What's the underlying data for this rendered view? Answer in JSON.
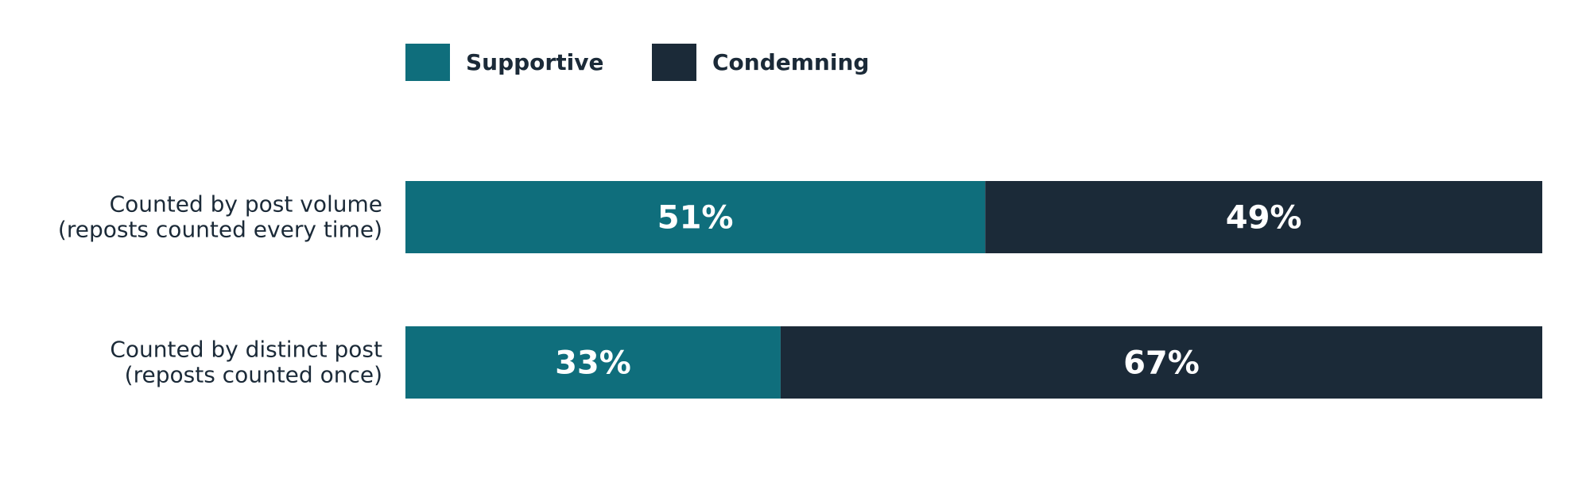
{
  "chart_data": {
    "type": "bar",
    "orientation": "horizontal",
    "stacked": true,
    "normalized_to": 100,
    "legend": {
      "position": "top-left"
    },
    "grid": false,
    "xlim": [
      0,
      100
    ],
    "categories": [
      {
        "lines": [
          "Counted by post volume",
          "(reposts counted every time)"
        ]
      },
      {
        "lines": [
          "Counted by distinct post",
          "(reposts counted once)"
        ]
      }
    ],
    "series": [
      {
        "name": "Supportive",
        "color": "#0f6e7c",
        "values": [
          51,
          33
        ],
        "labels": [
          "51%",
          "33%"
        ]
      },
      {
        "name": "Condemning",
        "color": "#1b2a38",
        "values": [
          49,
          67
        ],
        "labels": [
          "49%",
          "67%"
        ]
      }
    ]
  }
}
